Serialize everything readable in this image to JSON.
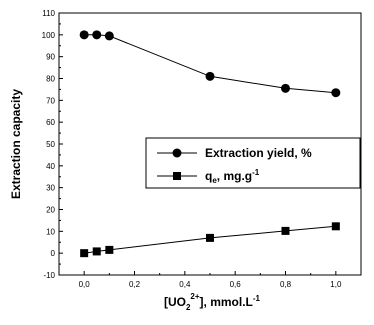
{
  "chart_data": {
    "type": "line",
    "x_ticks": [
      "0,0",
      "0,2",
      "0,4",
      "0,6",
      "0,8",
      "1,0"
    ],
    "y_ticks": [
      "-10",
      "0",
      "10",
      "20",
      "30",
      "40",
      "50",
      "60",
      "70",
      "80",
      "90",
      "100",
      "110"
    ],
    "xlim": [
      -0.1,
      1.1
    ],
    "ylim": [
      -10,
      110
    ],
    "grid": false,
    "legend_position": "center-right",
    "ylabel": "Extraction capacity",
    "xlabel": {
      "prefix": "[UO",
      "sub": "2",
      "sup": "2+",
      "suffix": "], mmol.L",
      "suffix_sup": "-1"
    },
    "series": [
      {
        "name": "Extraction yield, %",
        "marker": "circle",
        "x": [
          0.0,
          0.05,
          0.1,
          0.5,
          0.8,
          1.0
        ],
        "y": [
          100,
          100,
          99.5,
          81,
          75.5,
          73.5
        ]
      },
      {
        "name": {
          "prefix": "q",
          "sub": "e",
          "suffix": ", mg.g",
          "sup": "-1"
        },
        "marker": "square",
        "x": [
          0.0,
          0.05,
          0.1,
          0.5,
          0.8,
          1.0
        ],
        "y": [
          0,
          0.8,
          1.5,
          7,
          10.2,
          12.3
        ]
      }
    ]
  }
}
